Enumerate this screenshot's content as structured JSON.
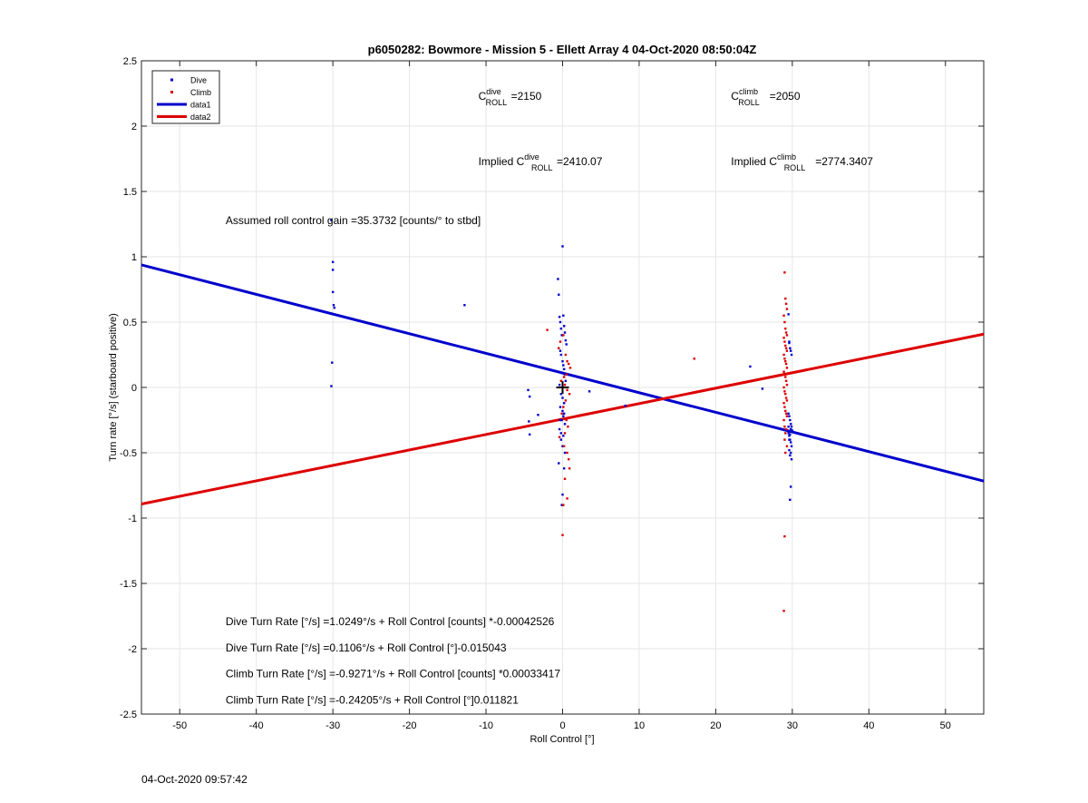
{
  "chart_data": {
    "type": "scatter",
    "title": "p6050282: Bowmore - Mission 5 - Ellett Array 4 04-Oct-2020 08:50:04Z",
    "xlabel": "Roll Control [°]",
    "ylabel": "Turn rate [°/s] (starboard positive)",
    "xlim": [
      -55,
      55
    ],
    "ylim": [
      -2.5,
      2.5
    ],
    "xticks": [
      -50,
      -40,
      -30,
      -20,
      -10,
      0,
      10,
      20,
      30,
      40,
      50
    ],
    "yticks": [
      -2.5,
      -2,
      -1.5,
      -1,
      -0.5,
      0,
      0.5,
      1,
      1.5,
      2,
      2.5
    ],
    "grid": true,
    "legend_position": "top-left",
    "legend": [
      "Dive",
      "Climb",
      "data1",
      "data2"
    ],
    "colors": {
      "dive": "#0000cc",
      "climb": "#dd0000",
      "marker": "#000000",
      "grid": "#e6e6e6"
    },
    "series": [
      {
        "name": "Dive",
        "kind": "points",
        "color": "#0000cc",
        "x": [
          -30.2,
          -30,
          -30,
          -30,
          -29.9,
          -29.8,
          -30.1,
          -30.2,
          -12.8,
          -4.5,
          -4.3,
          -4.4,
          -4.3,
          -3.2,
          -0.6,
          -0.5,
          -0.4,
          -0.3,
          -0.2,
          -0.1,
          0,
          0.1,
          0.2,
          0.3,
          0.4,
          0.5,
          -0.5,
          -0.3,
          -0.2,
          0,
          0.1,
          0.2,
          0.3,
          0.4,
          -0.4,
          -0.2,
          0,
          0.2,
          -0.3,
          0,
          0.2,
          -0.1,
          0.3,
          -0.4,
          -0.2,
          0.1,
          -0.2,
          0,
          0.3,
          -0.5,
          0.2,
          0,
          -0.1,
          -0.3,
          0.1,
          3.5,
          8.2,
          24.5,
          26.1,
          29.5,
          29.6,
          29.7,
          29.8,
          29.9,
          29.5,
          29.6,
          29.7,
          29.8,
          29.9,
          30,
          29.5,
          29.6,
          29.7,
          29.8,
          29.9,
          29.6,
          29.8,
          29.7,
          29.9,
          29.5,
          29.8,
          29.7,
          29.6,
          29.8,
          29.7,
          29.6
        ],
        "y": [
          1.28,
          0.96,
          0.9,
          0.73,
          0.63,
          0.61,
          0.19,
          0.01,
          0.63,
          -0.02,
          -0.07,
          -0.26,
          -0.36,
          -0.21,
          0.83,
          0.71,
          0.54,
          0.5,
          0.45,
          0.4,
          1.08,
          0.55,
          0.47,
          0.42,
          0.36,
          0.33,
          0.3,
          0.28,
          0.25,
          0.2,
          0.17,
          0.14,
          0.1,
          0.05,
          0.02,
          -0.05,
          -0.08,
          -0.12,
          -0.15,
          -0.18,
          -0.2,
          -0.25,
          -0.28,
          -0.32,
          -0.35,
          -0.37,
          -0.4,
          -0.45,
          -0.5,
          -0.58,
          -0.62,
          -0.82,
          -0.9,
          -0.25,
          -0.22,
          -0.03,
          -0.14,
          0.16,
          -0.01,
          0.56,
          0.34,
          0.3,
          0.28,
          0.25,
          -0.2,
          -0.22,
          -0.25,
          -0.28,
          -0.3,
          -0.33,
          -0.35,
          -0.37,
          -0.4,
          -0.42,
          -0.45,
          -0.48,
          -0.5,
          -0.52,
          -0.55,
          -0.3,
          -0.32,
          -0.36,
          -0.4,
          -0.76,
          -0.86,
          0.35
        ],
        "trend": {
          "name": "data1",
          "color": "#0000cc",
          "x": [
            -55,
            55
          ],
          "y": [
            0.9378,
            -0.7169
          ]
        }
      },
      {
        "name": "Climb",
        "kind": "points",
        "color": "#dd0000",
        "x": [
          -2,
          -0.5,
          -0.3,
          0.1,
          0.4,
          0.6,
          0.8,
          1,
          0.5,
          0.2,
          -0.2,
          0.3,
          0.6,
          0.9,
          0.4,
          0.1,
          -0.1,
          0.5,
          0.7,
          0.3,
          -0.4,
          0.2,
          0.6,
          0.8,
          0.9,
          0.3,
          0.6,
          0.1,
          0,
          17.2,
          29,
          29.1,
          29.2,
          29.3,
          28.9,
          29,
          29.1,
          29.2,
          29.3,
          28.9,
          29,
          29.1,
          29.2,
          29.3,
          28.9,
          29,
          29.1,
          29.2,
          29.3,
          28.9,
          29,
          29.1,
          29.2,
          29.3,
          28.9,
          29,
          29.1,
          29.2,
          29.3,
          28.9,
          29,
          29.1,
          29.2,
          29.3,
          28.9,
          29,
          29.2,
          29.1,
          29,
          29.3,
          29.1,
          29,
          28.9
        ],
        "y": [
          0.44,
          0.3,
          0.35,
          0.4,
          0.25,
          0.2,
          0.18,
          0.15,
          0.1,
          0.08,
          0.05,
          0.02,
          -0.02,
          -0.05,
          -0.1,
          -0.15,
          -0.2,
          -0.25,
          -0.3,
          -0.35,
          -0.38,
          -0.45,
          -0.5,
          -0.55,
          -0.62,
          -0.7,
          -0.85,
          -0.9,
          -1.13,
          0.22,
          0.88,
          0.68,
          0.64,
          0.6,
          0.55,
          0.5,
          0.45,
          0.42,
          0.4,
          0.38,
          0.35,
          0.32,
          0.3,
          0.28,
          0.25,
          0.22,
          0.2,
          0.18,
          0.15,
          0.12,
          0.1,
          0.08,
          0.05,
          0.02,
          0,
          -0.03,
          -0.05,
          -0.08,
          -0.1,
          -0.12,
          -0.15,
          -0.18,
          -0.2,
          -0.22,
          -0.25,
          -0.3,
          -0.32,
          -0.35,
          -0.4,
          -0.45,
          -0.5,
          -1.14,
          -1.71
        ],
        "trend": {
          "name": "data2",
          "color": "#dd0000",
          "x": [
            -55,
            55
          ],
          "y": [
            -0.8922,
            0.4081
          ]
        }
      }
    ],
    "center_marker": {
      "x": 0,
      "y": 0,
      "symbol": "+"
    },
    "annotations": {
      "c_dive": {
        "prefix": "",
        "base": "C",
        "sup": "dive",
        "sub": "ROLL",
        "value": "=2150",
        "x": -11,
        "y": 2.2
      },
      "c_climb": {
        "prefix": "",
        "base": "C",
        "sup": "climb",
        "sub": "ROLL",
        "value": "=2050",
        "x": 22,
        "y": 2.2
      },
      "implied_dive": {
        "prefix": "Implied ",
        "base": "C",
        "sup": "dive",
        "sub": "ROLL",
        "value": "=2410.07",
        "x": -11,
        "y": 1.7
      },
      "implied_climb": {
        "prefix": "Implied ",
        "base": "C",
        "sup": "climb",
        "sub": "ROLL",
        "value": "=2774.3407",
        "x": 22,
        "y": 1.7
      },
      "gain": {
        "text": "Assumed roll control gain =35.3732 [counts/° to stbd]",
        "x": -44,
        "y": 1.25
      },
      "eq_dive_counts": {
        "text": "Dive Turn Rate [°/s] =1.0249°/s + Roll Control [counts] *-0.00042526",
        "x": -44,
        "y": -1.82
      },
      "eq_dive_deg": {
        "text": "Dive Turn Rate [°/s] =0.1106°/s + Roll Control [°]-0.015043",
        "x": -44,
        "y": -2.02
      },
      "eq_climb_counts": {
        "text": "Climb Turn Rate [°/s] =-0.9271°/s + Roll Control [counts] *0.00033417",
        "x": -44,
        "y": -2.22
      },
      "eq_climb_deg": {
        "text": "Climb Turn Rate [°/s] =-0.24205°/s + Roll Control [°]0.011821",
        "x": -44,
        "y": -2.42
      }
    },
    "timestamp": "04-Oct-2020 09:57:42"
  }
}
